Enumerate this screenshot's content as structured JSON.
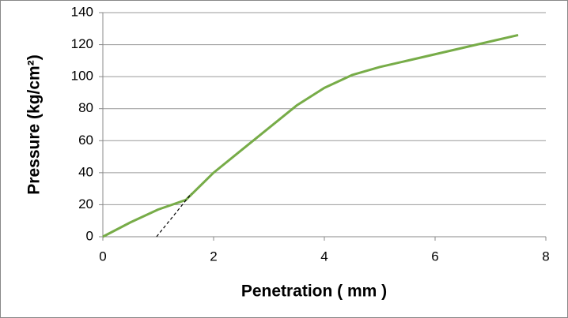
{
  "chart_data": {
    "type": "line",
    "xlabel": "Penetration ( mm )",
    "ylabel": "Pressure (kg/cm²)",
    "series": [
      {
        "color": "#77ac48",
        "x": [
          0,
          0.5,
          1,
          1.5,
          2,
          2.5,
          3,
          3.5,
          4,
          4.5,
          5,
          5.5,
          6,
          6.5,
          7,
          7.5
        ],
        "values": [
          0,
          9,
          17,
          23,
          40,
          54,
          68,
          82,
          93,
          101,
          106,
          110,
          114,
          118,
          122,
          126
        ]
      },
      {
        "color": "#000000",
        "dashed": true,
        "x": [
          0.97,
          1.6
        ],
        "values": [
          0,
          27
        ]
      }
    ],
    "xlim": [
      0,
      8
    ],
    "xticks": [
      0,
      2,
      4,
      6,
      8
    ],
    "ylim": [
      0,
      140
    ],
    "yticks": [
      0,
      20,
      40,
      60,
      80,
      100,
      120,
      140
    ],
    "grid": true
  }
}
